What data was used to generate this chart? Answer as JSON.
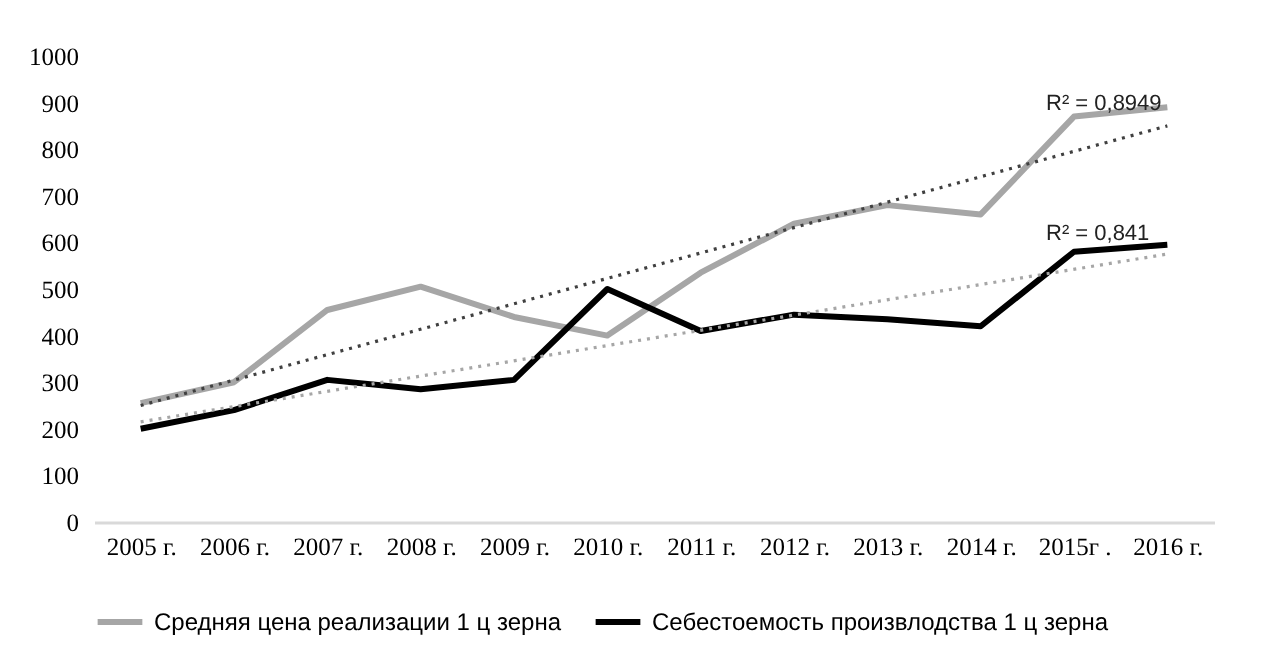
{
  "chart_data": {
    "type": "line",
    "categories": [
      "2005 г.",
      "2006 г.",
      "2007 г.",
      "2008 г.",
      "2009 г.",
      "2010 г.",
      "2011 г.",
      "2012 г.",
      "2013 г.",
      "2014 г.",
      "2015г .",
      "2016 г."
    ],
    "series": [
      {
        "name": "Средняя цена реализации 1 ц зерна",
        "color": "#a6a6a6",
        "values": [
          255,
          300,
          455,
          505,
          440,
          400,
          535,
          640,
          680,
          660,
          870,
          890
        ]
      },
      {
        "name": "Себестоемость произвлодства 1 ц зерна",
        "color": "#000000",
        "values": [
          200,
          240,
          305,
          285,
          305,
          500,
          410,
          445,
          435,
          420,
          580,
          595
        ]
      },
      {
        "type": "line",
        "color": "#404040",
        "line_style": "dotted",
        "x": [
          "2005 г.",
          "2016 г."
        ],
        "values": [
          250,
          850
        ]
      },
      {
        "type": "line",
        "color": "#a6a6a6",
        "line_style": "dotted",
        "x": [
          "2005 г.",
          "2016 г."
        ],
        "values": [
          215,
          575
        ]
      }
    ],
    "ylim": [
      0,
      1000
    ],
    "yticks": [
      0,
      100,
      200,
      300,
      400,
      500,
      600,
      700,
      800,
      900,
      1000
    ],
    "grid": false,
    "legend": "bottom",
    "marker": "none",
    "line_style": "solid",
    "annotations": [
      {
        "text": "R² = 0,8949",
        "x": "2015г .",
        "y": 850
      },
      {
        "text": "R² = 0,841",
        "x": "2015г .",
        "y": 570
      }
    ]
  }
}
